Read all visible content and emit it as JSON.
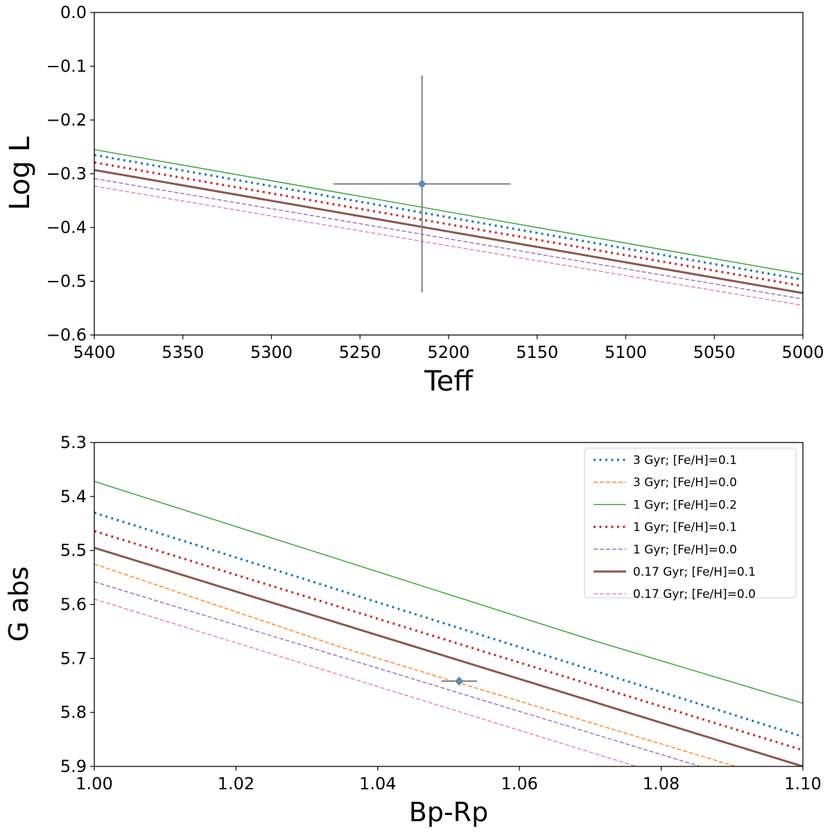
{
  "chart_data": [
    {
      "type": "line",
      "id": "top",
      "xlabel": "Teff",
      "ylabel": "Log L",
      "xlim": [
        5400,
        5000
      ],
      "ylim": [
        -0.6,
        0.0
      ],
      "xticks": [
        5400,
        5350,
        5300,
        5250,
        5200,
        5150,
        5100,
        5050,
        5000
      ],
      "yticks": [
        0.0,
        -0.1,
        -0.2,
        -0.3,
        -0.4,
        -0.5,
        -0.6
      ],
      "xtick_labels": [
        "5400",
        "5350",
        "5300",
        "5250",
        "5200",
        "5150",
        "5100",
        "5050",
        "5000"
      ],
      "ytick_labels": [
        "0.0",
        "−0.1",
        "−0.2",
        "−0.3",
        "−0.4",
        "−0.5",
        "−0.6"
      ],
      "series": [
        {
          "name": "3 Gyr; [Fe/H]=0.1",
          "color": "#1f77b4",
          "style": "dotted",
          "x": [
            5400,
            5000
          ],
          "y": [
            -0.265,
            -0.497
          ]
        },
        {
          "name": "1 Gyr; [Fe/H]=0.2",
          "color": "#2ca02c",
          "style": "solid",
          "x": [
            5400,
            5000
          ],
          "y": [
            -0.255,
            -0.487
          ]
        },
        {
          "name": "1 Gyr; [Fe/H]=0.1",
          "color": "#d62728",
          "style": "dotted",
          "x": [
            5400,
            5000
          ],
          "y": [
            -0.279,
            -0.509
          ]
        },
        {
          "name": "1 Gyr; [Fe/H]=0.0",
          "color": "#9467bd",
          "style": "dashed",
          "x": [
            5400,
            5000
          ],
          "y": [
            -0.309,
            -0.533
          ]
        },
        {
          "name": "0.17 Gyr; [Fe/H]=0.1",
          "color": "#8c564b",
          "style": "thick",
          "x": [
            5400,
            5000
          ],
          "y": [
            -0.293,
            -0.522
          ]
        },
        {
          "name": "0.17 Gyr; [Fe/H]=0.0",
          "color": "#e377c2",
          "style": "dashed",
          "x": [
            5400,
            5000
          ],
          "y": [
            -0.323,
            -0.545
          ]
        }
      ],
      "point": {
        "x": 5215,
        "y": -0.319,
        "xerr": 50,
        "yerr": 0.202
      }
    },
    {
      "type": "line",
      "id": "bottom",
      "xlabel": "Bp-Rp",
      "ylabel": "G abs",
      "xlim": [
        1.0,
        1.1
      ],
      "ylim": [
        5.9,
        5.3
      ],
      "xticks": [
        1.0,
        1.02,
        1.04,
        1.06,
        1.08,
        1.1
      ],
      "yticks": [
        5.3,
        5.4,
        5.5,
        5.6,
        5.7,
        5.8,
        5.9
      ],
      "xtick_labels": [
        "1.00",
        "1.02",
        "1.04",
        "1.06",
        "1.08",
        "1.10"
      ],
      "ytick_labels": [
        "5.3",
        "5.4",
        "5.5",
        "5.6",
        "5.7",
        "5.8",
        "5.9"
      ],
      "series": [
        {
          "name": "3 Gyr; [Fe/H]=0.1",
          "color": "#1f77b4",
          "style": "dotted",
          "x": [
            1.0,
            1.1
          ],
          "y": [
            5.43,
            5.845
          ]
        },
        {
          "name": "3 Gyr; [Fe/H]=0.0",
          "color": "#ff7f0e",
          "style": "dashed",
          "x": [
            1.0,
            1.035,
            1.0905
          ],
          "y": [
            5.525,
            5.68,
            5.9
          ]
        },
        {
          "name": "1 Gyr; [Fe/H]=0.2",
          "color": "#2ca02c",
          "style": "solid",
          "x": [
            1.0,
            1.07,
            1.1
          ],
          "y": [
            5.372,
            5.665,
            5.783
          ]
        },
        {
          "name": "1 Gyr; [Fe/H]=0.1",
          "color": "#d62728",
          "style": "dotted",
          "x": [
            1.0,
            1.1
          ],
          "y": [
            5.464,
            5.87
          ]
        },
        {
          "name": "1 Gyr; [Fe/H]=0.0",
          "color": "#9467bd",
          "style": "dashed",
          "x": [
            1.0,
            1.0855
          ],
          "y": [
            5.558,
            5.9
          ]
        },
        {
          "name": "0.17 Gyr; [Fe/H]=0.1",
          "color": "#8c564b",
          "style": "thick",
          "x": [
            1.0,
            1.1
          ],
          "y": [
            5.495,
            5.9
          ]
        },
        {
          "name": "0.17 Gyr; [Fe/H]=0.0",
          "color": "#e377c2",
          "style": "dashed",
          "x": [
            1.0,
            1.0765
          ],
          "y": [
            5.59,
            5.9
          ]
        }
      ],
      "point": {
        "x": 1.0515,
        "y": 5.742,
        "xerr": 0.0025,
        "yerr": 0.008
      },
      "legend_position": "upper-right"
    }
  ]
}
